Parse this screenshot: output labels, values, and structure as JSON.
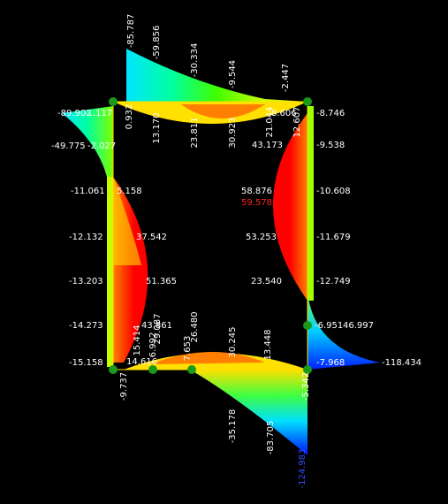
{
  "labels": [
    "-85.787",
    "-59.856",
    "-30.334",
    "-9.544",
    "-2.447",
    "0.932",
    "13.170",
    "23.811",
    "30.923",
    "21.044",
    "12.607",
    "8.606",
    "-89.902",
    "-1.117",
    "-49.775",
    "-2.027",
    "-11.061",
    "5.158",
    "-12.132",
    "37.542",
    "-13.203",
    "51.365",
    "-14.273",
    "43.861",
    "-15.158",
    "-8.746",
    "-9.538",
    "-10.608",
    "-11.679",
    "-12.749",
    "-6.951",
    "46.997",
    "-7.968",
    "-118.434",
    "43.173",
    "58.876",
    "59.578",
    "53.253",
    "23.540",
    "15.414",
    "-9.737",
    "14.616",
    "6.992",
    "29.087",
    "7.653",
    "26.480",
    "30.245",
    "13.448",
    "-35.178",
    "-83.705",
    "-5.342",
    "-124.983"
  ]
}
